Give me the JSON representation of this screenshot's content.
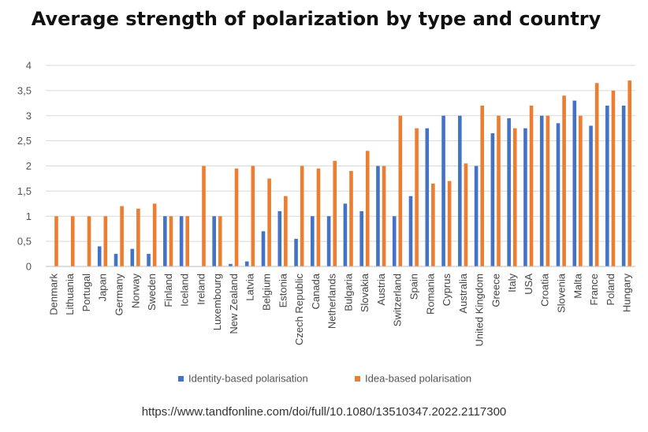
{
  "chart_data": {
    "type": "bar",
    "title": "Average strength of polarization by type and country",
    "xlabel": "",
    "ylabel": "",
    "ylim": [
      0,
      4
    ],
    "yticks": [
      0,
      0.5,
      1,
      1.5,
      2,
      2.5,
      3,
      3.5,
      4
    ],
    "ytick_labels": [
      "0",
      "0,5",
      "1",
      "1,5",
      "2",
      "2,5",
      "3",
      "3,5",
      "4"
    ],
    "grid": true,
    "legend_position": "bottom-center",
    "categories": [
      "Denmark",
      "Lithuania",
      "Portugal",
      "Japan",
      "Germany",
      "Norway",
      "Sweden",
      "Finland",
      "Iceland",
      "Ireland",
      "Luxembourg",
      "New Zealand",
      "Latvia",
      "Belgium",
      "Estonia",
      "Czech Republic",
      "Canada",
      "Netherlands",
      "Bulgaria",
      "Slovakia",
      "Austria",
      "Switzerland",
      "Spain",
      "Romania",
      "Cyprus",
      "Australia",
      "United Kingdom",
      "Greece",
      "Italy",
      "USA",
      "Croatia",
      "Slovenia",
      "Malta",
      "France",
      "Poland",
      "Hungary"
    ],
    "series": [
      {
        "name": "Identity-based polarisation",
        "color": "#4472C4",
        "values": [
          0,
          0,
          0,
          0.4,
          0.25,
          0.35,
          0.25,
          1,
          1,
          0,
          1,
          0.05,
          0.1,
          0.7,
          1.1,
          0.55,
          1,
          1,
          1.25,
          1.1,
          2,
          1,
          1.4,
          2.75,
          3,
          3,
          2,
          2.65,
          2.95,
          2.75,
          3,
          2.85,
          3.3,
          2.8,
          3.2,
          3.2
        ]
      },
      {
        "name": "Idea-based polarisation",
        "color": "#ED7D31",
        "values": [
          1,
          1,
          1,
          1,
          1.2,
          1.15,
          1.25,
          1,
          1,
          2,
          1,
          1.95,
          2,
          1.75,
          1.4,
          2,
          1.95,
          2.1,
          1.9,
          2.3,
          2,
          3,
          2.75,
          1.65,
          1.7,
          2.05,
          3.2,
          3,
          2.75,
          3.2,
          3,
          3.4,
          3,
          3.65,
          3.5,
          3.7
        ]
      }
    ]
  },
  "source": "https://www.tandfonline.com/doi/full/10.1080/13510347.2022.2117300"
}
